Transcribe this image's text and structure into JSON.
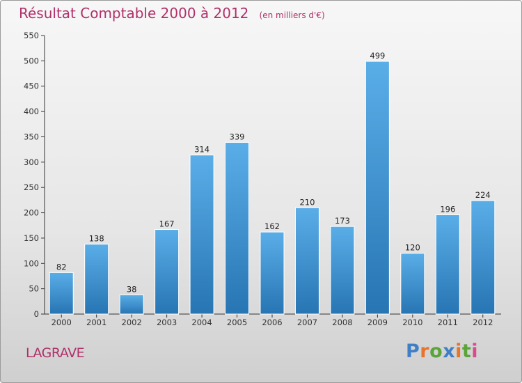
{
  "chart_data": {
    "type": "bar",
    "title": "Résultat Comptable 2000 à 2012",
    "subtitle": "(en milliers d'€)",
    "categories": [
      "2000",
      "2001",
      "2002",
      "2003",
      "2004",
      "2005",
      "2006",
      "2007",
      "2008",
      "2009",
      "2010",
      "2011",
      "2012"
    ],
    "values": [
      82,
      138,
      38,
      167,
      314,
      339,
      162,
      210,
      173,
      499,
      120,
      196,
      224
    ],
    "ylim": [
      0,
      550
    ],
    "yticks": [
      0,
      50,
      100,
      150,
      200,
      250,
      300,
      350,
      400,
      450,
      500,
      550
    ],
    "grid": false,
    "xlabel": "",
    "ylabel": ""
  },
  "footer": {
    "commune": "LAGRAVE",
    "logo_letters": [
      "P",
      "r",
      "o",
      "x",
      "i",
      "t",
      "i"
    ],
    "logo_colors": [
      "#3f7fc6",
      "#e8742a",
      "#5aa43a",
      "#3f7fc6",
      "#e8742a",
      "#5aa43a",
      "#d94b8c"
    ]
  },
  "colors": {
    "title": "#b0306a",
    "bar_top": "#5aaee8",
    "bar_bottom": "#2775b3",
    "axis": "#333333"
  }
}
